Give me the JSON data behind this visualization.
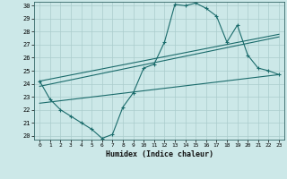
{
  "xlabel": "Humidex (Indice chaleur)",
  "bg_color": "#cce8e8",
  "grid_color": "#aacccc",
  "line_color": "#1a6b6b",
  "xlim": [
    -0.5,
    23.5
  ],
  "ylim": [
    19.7,
    30.3
  ],
  "xticks": [
    0,
    1,
    2,
    3,
    4,
    5,
    6,
    7,
    8,
    9,
    10,
    11,
    12,
    13,
    14,
    15,
    16,
    17,
    18,
    19,
    20,
    21,
    22,
    23
  ],
  "yticks": [
    20,
    21,
    22,
    23,
    24,
    25,
    26,
    27,
    28,
    29,
    30
  ],
  "main_x": [
    0,
    1,
    2,
    3,
    4,
    5,
    6,
    7,
    8,
    9,
    10,
    11,
    12,
    13,
    14,
    15,
    16,
    17,
    18,
    19,
    20,
    21,
    22,
    23
  ],
  "main_y": [
    24.2,
    22.8,
    22.0,
    21.5,
    21.0,
    20.5,
    19.8,
    20.1,
    22.2,
    23.3,
    25.2,
    25.5,
    27.2,
    30.1,
    30.0,
    30.2,
    29.8,
    29.2,
    27.2,
    28.5,
    26.2,
    25.2,
    25.0,
    24.7
  ],
  "trend1": [
    24.2,
    27.8
  ],
  "trend2": [
    23.8,
    27.6
  ],
  "trend3": [
    22.5,
    24.7
  ]
}
